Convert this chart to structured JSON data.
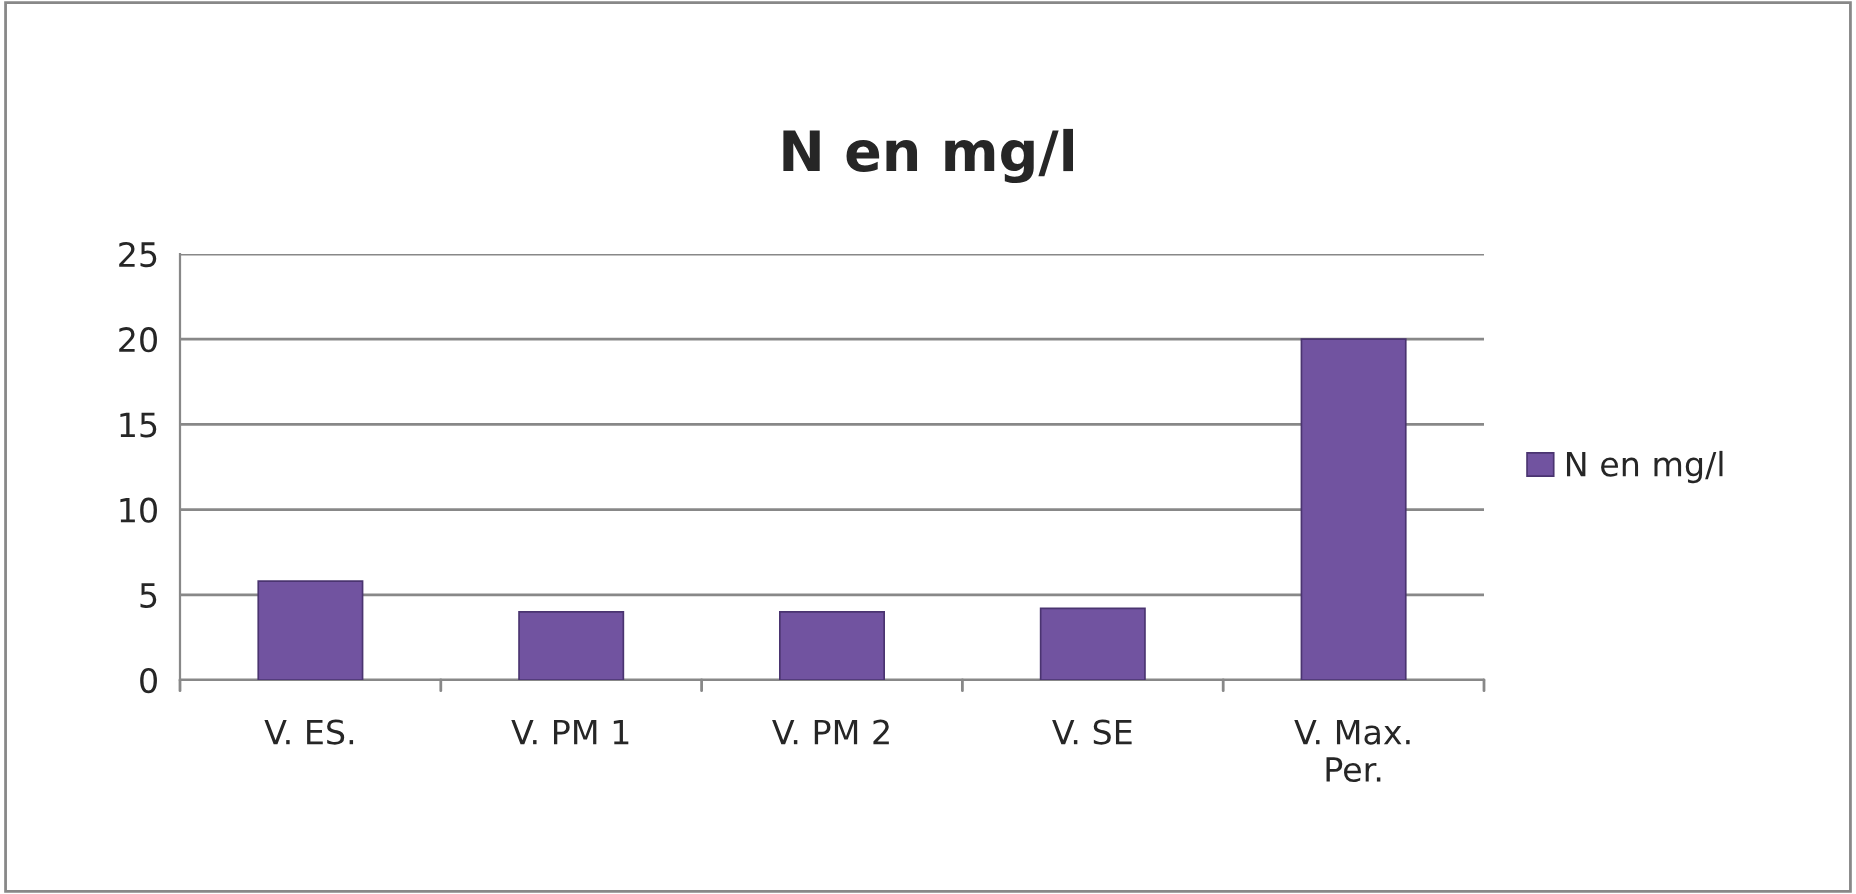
{
  "chart_data": {
    "type": "bar",
    "title": "N en mg/l",
    "categories": [
      "V. ES.",
      "V. PM 1",
      "V. PM 2",
      "V. SE",
      "V. Max.\nPer."
    ],
    "series": [
      {
        "name": "N en mg/l",
        "color": "#7153a0",
        "values": [
          5.8,
          4.0,
          4.0,
          4.2,
          20.0
        ]
      }
    ],
    "ylim": [
      0,
      25
    ],
    "yticks": [
      0,
      5,
      10,
      15,
      20,
      25
    ],
    "grid": "y",
    "legend": "right"
  }
}
